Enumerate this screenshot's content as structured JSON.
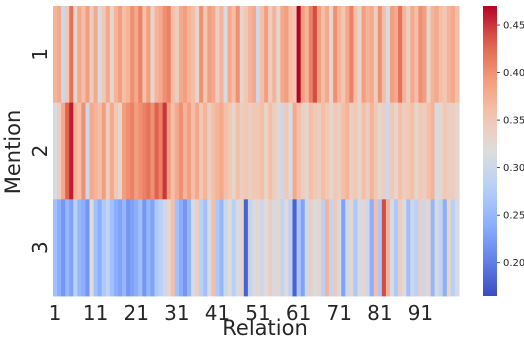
{
  "chart_data": {
    "type": "heatmap",
    "xlabel": "Relation",
    "ylabel": "Mention",
    "x_tick_labels": [
      "1",
      "11",
      "21",
      "31",
      "41",
      "51",
      "61",
      "71",
      "81",
      "91"
    ],
    "y_tick_labels": [
      "1",
      "2",
      "3"
    ],
    "colorbar": {
      "colormap": "coolwarm",
      "vmin": 0.165,
      "vmax": 0.47,
      "tick_labels": [
        "0.20",
        "0.25",
        "0.30",
        "0.35",
        "0.40",
        "0.45"
      ],
      "ticks": [
        0.2,
        0.25,
        0.3,
        0.35,
        0.4,
        0.45
      ]
    },
    "rows": [
      {
        "label": "1",
        "values": [
          0.37,
          0.38,
          0.3,
          0.35,
          0.42,
          0.33,
          0.38,
          0.36,
          0.39,
          0.34,
          0.38,
          0.31,
          0.35,
          0.38,
          0.33,
          0.37,
          0.39,
          0.36,
          0.37,
          0.4,
          0.38,
          0.41,
          0.36,
          0.39,
          0.33,
          0.37,
          0.38,
          0.4,
          0.41,
          0.36,
          0.34,
          0.38,
          0.39,
          0.37,
          0.36,
          0.33,
          0.4,
          0.35,
          0.39,
          0.38,
          0.34,
          0.37,
          0.31,
          0.38,
          0.36,
          0.4,
          0.33,
          0.35,
          0.37,
          0.38,
          0.3,
          0.36,
          0.39,
          0.34,
          0.37,
          0.33,
          0.38,
          0.39,
          0.36,
          0.35,
          0.47,
          0.39,
          0.37,
          0.41,
          0.44,
          0.39,
          0.36,
          0.38,
          0.33,
          0.4,
          0.37,
          0.35,
          0.38,
          0.41,
          0.36,
          0.33,
          0.39,
          0.37,
          0.38,
          0.34,
          0.4,
          0.36,
          0.31,
          0.39,
          0.38,
          0.42,
          0.37,
          0.34,
          0.38,
          0.36,
          0.4,
          0.39,
          0.33,
          0.37,
          0.38,
          0.36,
          0.35,
          0.37,
          0.38,
          0.36
        ]
      },
      {
        "label": "2",
        "values": [
          0.31,
          0.34,
          0.38,
          0.43,
          0.46,
          0.37,
          0.36,
          0.4,
          0.3,
          0.38,
          0.37,
          0.36,
          0.39,
          0.34,
          0.38,
          0.35,
          0.33,
          0.39,
          0.4,
          0.41,
          0.39,
          0.4,
          0.41,
          0.42,
          0.4,
          0.43,
          0.41,
          0.45,
          0.39,
          0.36,
          0.38,
          0.4,
          0.37,
          0.39,
          0.36,
          0.38,
          0.35,
          0.37,
          0.34,
          0.36,
          0.37,
          0.38,
          0.36,
          0.35,
          0.33,
          0.36,
          0.34,
          0.35,
          0.34,
          0.35,
          0.35,
          0.36,
          0.33,
          0.36,
          0.34,
          0.33,
          0.3,
          0.35,
          0.31,
          0.38,
          0.36,
          0.34,
          0.33,
          0.36,
          0.35,
          0.34,
          0.36,
          0.35,
          0.33,
          0.35,
          0.34,
          0.36,
          0.37,
          0.34,
          0.35,
          0.33,
          0.36,
          0.34,
          0.37,
          0.35,
          0.33,
          0.34,
          0.3,
          0.35,
          0.33,
          0.36,
          0.34,
          0.35,
          0.36,
          0.33,
          0.35,
          0.34,
          0.36,
          0.37,
          0.31,
          0.33,
          0.35,
          0.34,
          0.34,
          0.33
        ]
      },
      {
        "label": "3",
        "values": [
          0.26,
          0.24,
          0.22,
          0.25,
          0.23,
          0.28,
          0.25,
          0.24,
          0.22,
          0.32,
          0.26,
          0.24,
          0.27,
          0.29,
          0.26,
          0.24,
          0.23,
          0.25,
          0.22,
          0.23,
          0.24,
          0.26,
          0.22,
          0.25,
          0.23,
          0.27,
          0.28,
          0.3,
          0.33,
          0.36,
          0.26,
          0.24,
          0.22,
          0.25,
          0.31,
          0.34,
          0.28,
          0.26,
          0.31,
          0.36,
          0.27,
          0.25,
          0.3,
          0.32,
          0.28,
          0.31,
          0.33,
          0.18,
          0.29,
          0.31,
          0.33,
          0.3,
          0.32,
          0.34,
          0.31,
          0.33,
          0.29,
          0.32,
          0.28,
          0.18,
          0.27,
          0.23,
          0.3,
          0.34,
          0.31,
          0.33,
          0.28,
          0.37,
          0.29,
          0.35,
          0.31,
          0.23,
          0.3,
          0.33,
          0.27,
          0.31,
          0.33,
          0.3,
          0.24,
          0.36,
          0.27,
          0.44,
          0.37,
          0.31,
          0.27,
          0.34,
          0.32,
          0.26,
          0.3,
          0.28,
          0.34,
          0.3,
          0.33,
          0.25,
          0.31,
          0.29,
          0.24,
          0.33,
          0.28,
          0.31
        ]
      }
    ]
  }
}
